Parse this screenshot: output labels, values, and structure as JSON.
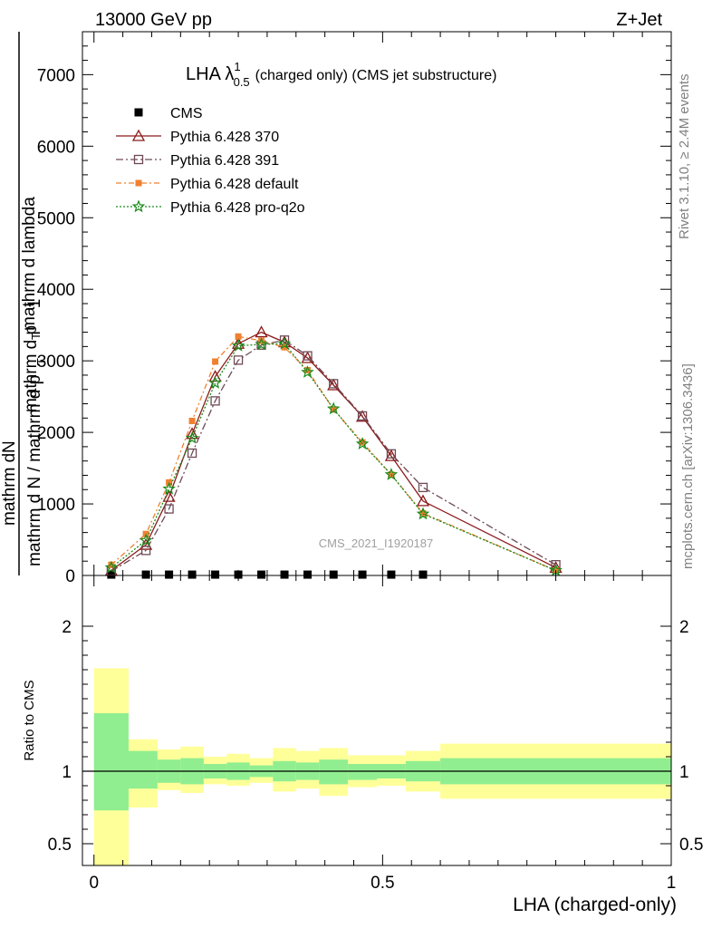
{
  "header": {
    "left": "13000 GeV pp",
    "right": "Z+Jet"
  },
  "chart_data": [
    {
      "type": "line",
      "title_main": "LHA λ",
      "title_sup": "1",
      "title_sub": "0.5",
      "title_rest": "(charged only) (CMS jet substructure)",
      "ylabel_num_top": "mathrm d",
      "ylabel_num_n": "N",
      "ylabel_num_rest": "mathrm d p",
      "ylabel_num_t": "T",
      "ylabel_num_tail": " mathrm d lambda",
      "ylabel_frac_one": "1",
      "ylabel_den": "mathrm d N / mathrm d p",
      "ylabel_den_t": "T",
      "ylim": [
        0,
        7600
      ],
      "xlim": [
        -0.02,
        1.0
      ],
      "y_ticks": [
        0,
        1000,
        2000,
        3000,
        4000,
        5000,
        6000,
        7000
      ],
      "y_tick_labels": [
        "0",
        "1000",
        "2000",
        "3000",
        "4000",
        "5000",
        "6000",
        "7000"
      ],
      "watermark": "CMS_2021_I1920187",
      "legend_position": "top-left",
      "x": [
        0.03,
        0.09,
        0.13,
        0.17,
        0.21,
        0.25,
        0.29,
        0.33,
        0.37,
        0.415,
        0.465,
        0.515,
        0.57,
        0.8
      ],
      "series": [
        {
          "name": "CMS",
          "color": "#000000",
          "marker": "square-filled",
          "dash": "none",
          "values": [
            12,
            12,
            12,
            12,
            12,
            12,
            12,
            12,
            12,
            12,
            12,
            12,
            12,
            null
          ]
        },
        {
          "name": "Pythia 6.428 370",
          "color": "#8b1a1a",
          "marker": "triangle-open",
          "dash": "solid",
          "values": [
            70,
            430,
            1100,
            1980,
            2780,
            3240,
            3400,
            3260,
            3040,
            2660,
            2220,
            1670,
            1040,
            110
          ]
        },
        {
          "name": "Pythia 6.428 391",
          "color": "#6e4a55",
          "marker": "square-open",
          "dash": "dashdot",
          "values": [
            60,
            350,
            930,
            1710,
            2440,
            3010,
            3220,
            3290,
            3070,
            2680,
            2230,
            1700,
            1230,
            150
          ]
        },
        {
          "name": "Pythia 6.428 default",
          "color": "#f08030",
          "marker": "square-filled-small",
          "dash": "dashdot2",
          "values": [
            150,
            580,
            1300,
            2160,
            2990,
            3340,
            3280,
            3190,
            2870,
            2320,
            1860,
            1410,
            870,
            70
          ]
        },
        {
          "name": "Pythia 6.428 pro-q2o",
          "color": "#1a8a1a",
          "marker": "star-open",
          "dash": "dotted",
          "values": [
            110,
            490,
            1210,
            1920,
            2690,
            3210,
            3230,
            3240,
            2840,
            2330,
            1840,
            1410,
            860,
            70
          ]
        }
      ]
    },
    {
      "type": "area",
      "ylabel": "Ratio to CMS",
      "xlabel": "LHA (charged-only)",
      "ylim": [
        0.35,
        2.35
      ],
      "xlim": [
        -0.02,
        1.0
      ],
      "y_ticks": [
        0.5,
        1,
        2
      ],
      "y_tick_labels": [
        "0.5",
        "1",
        "2"
      ],
      "x_ticks": [
        0,
        0.5,
        1
      ],
      "x_tick_labels": [
        "0",
        "0.5",
        "1"
      ],
      "reference": 1,
      "band_colors": {
        "outer": "#ffff99",
        "inner": "#90ee90"
      },
      "bins": [
        {
          "lo": 0.0,
          "hi": 0.06,
          "outer": [
            0.35,
            1.71
          ],
          "inner": [
            0.73,
            1.4
          ]
        },
        {
          "lo": 0.06,
          "hi": 0.11,
          "outer": [
            0.75,
            1.22
          ],
          "inner": [
            0.88,
            1.14
          ]
        },
        {
          "lo": 0.11,
          "hi": 0.15,
          "outer": [
            0.87,
            1.15
          ],
          "inner": [
            0.92,
            1.08
          ]
        },
        {
          "lo": 0.15,
          "hi": 0.19,
          "outer": [
            0.85,
            1.17
          ],
          "inner": [
            0.91,
            1.09
          ]
        },
        {
          "lo": 0.19,
          "hi": 0.23,
          "outer": [
            0.91,
            1.1
          ],
          "inner": [
            0.95,
            1.05
          ]
        },
        {
          "lo": 0.23,
          "hi": 0.27,
          "outer": [
            0.9,
            1.12
          ],
          "inner": [
            0.94,
            1.06
          ]
        },
        {
          "lo": 0.27,
          "hi": 0.31,
          "outer": [
            0.92,
            1.09
          ],
          "inner": [
            0.96,
            1.04
          ]
        },
        {
          "lo": 0.31,
          "hi": 0.35,
          "outer": [
            0.86,
            1.16
          ],
          "inner": [
            0.93,
            1.07
          ]
        },
        {
          "lo": 0.35,
          "hi": 0.39,
          "outer": [
            0.88,
            1.14
          ],
          "inner": [
            0.94,
            1.06
          ]
        },
        {
          "lo": 0.39,
          "hi": 0.44,
          "outer": [
            0.83,
            1.16
          ],
          "inner": [
            0.91,
            1.08
          ]
        },
        {
          "lo": 0.44,
          "hi": 0.49,
          "outer": [
            0.89,
            1.11
          ],
          "inner": [
            0.94,
            1.05
          ]
        },
        {
          "lo": 0.49,
          "hi": 0.54,
          "outer": [
            0.9,
            1.11
          ],
          "inner": [
            0.95,
            1.05
          ]
        },
        {
          "lo": 0.54,
          "hi": 0.6,
          "outer": [
            0.86,
            1.14
          ],
          "inner": [
            0.93,
            1.07
          ]
        },
        {
          "lo": 0.6,
          "hi": 1.0,
          "outer": [
            0.81,
            1.19
          ],
          "inner": [
            0.91,
            1.09
          ]
        }
      ]
    }
  ],
  "side_texts": {
    "rivet": "Rivet 3.1.10, ≥ 2.4M events",
    "mcplots": "mcplots.cern.ch [arXiv:1306.3436]"
  }
}
